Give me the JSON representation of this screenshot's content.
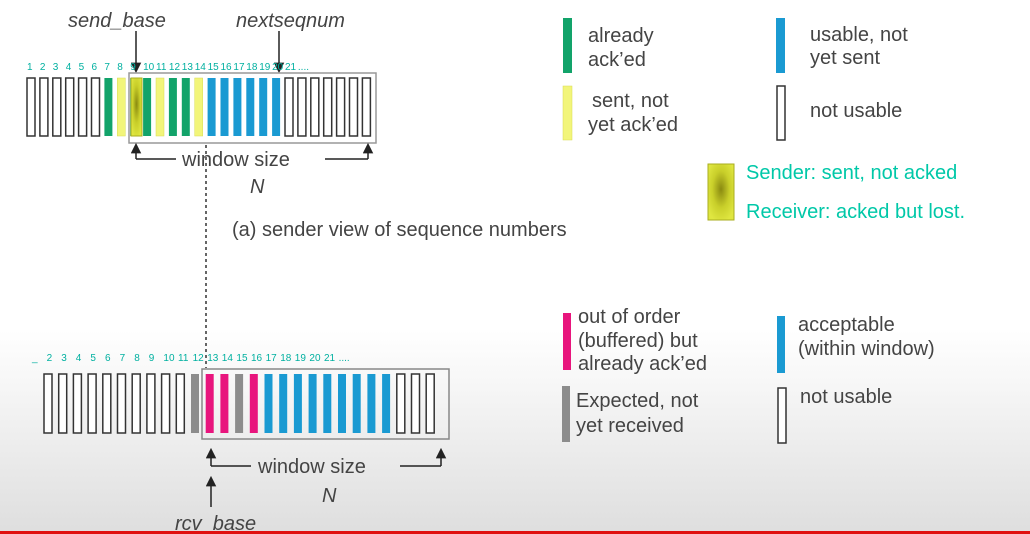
{
  "sender": {
    "send_base_label": "send_base",
    "nextseqnum_label": "nextseqnum",
    "numbers": [
      "1",
      "2",
      "3",
      "4",
      "5",
      "6",
      "7",
      "8",
      "9",
      "10",
      "11",
      "12",
      "13",
      "14",
      "15",
      "16",
      "17",
      "18",
      "19",
      "20",
      "21",
      "...."
    ],
    "slot_states": [
      "n",
      "n",
      "n",
      "n",
      "n",
      "n",
      "g",
      "y",
      "g",
      "g",
      "y",
      "g",
      "g",
      "y",
      "b",
      "b",
      "b",
      "b",
      "b",
      "b",
      "n",
      "n",
      "n",
      "n",
      "n",
      "n",
      "n"
    ],
    "window_label": "window size",
    "n_label": "N",
    "caption": "(a) sender view of sequence numbers"
  },
  "receiver": {
    "numbers": [
      "_",
      "2",
      "3",
      "4",
      "5",
      "6",
      "7",
      "8",
      "9",
      "10",
      "11",
      "12",
      "13",
      "14",
      "15",
      "16",
      "17",
      "18",
      "19",
      "20",
      "21",
      "...."
    ],
    "slot_states": [
      "n",
      "n",
      "n",
      "n",
      "n",
      "n",
      "n",
      "n",
      "n",
      "n",
      "x",
      "p",
      "p",
      "x",
      "p",
      "b",
      "b",
      "b",
      "b",
      "b",
      "b",
      "b",
      "b",
      "b",
      "n",
      "n",
      "n"
    ],
    "window_label": "window size",
    "n_label": "N",
    "rcv_base_label": "rcv_base"
  },
  "legend_top": {
    "already_line1": "already",
    "already_line2": "ack’ed",
    "usable_line1": "usable, not",
    "usable_line2": "yet sent",
    "sent_line1": "sent, not",
    "sent_line2": "yet ack’ed",
    "not_usable": "not usable",
    "note_line1": "Sender: sent, not acked",
    "note_line2": "Receiver: acked but lost."
  },
  "legend_bottom": {
    "ooo_line1": "out of order",
    "ooo_line2": "(buffered) but",
    "ooo_line3": "already ack’ed",
    "acceptable_line1": "acceptable",
    "acceptable_line2": "(within window)",
    "expected_line1": "Expected,  not",
    "expected_line2": "yet received",
    "not_usable": "not usable"
  },
  "colors": {
    "green": "#12a36a",
    "yellow": "#f2f57a",
    "blue": "#1a9ad2",
    "magenta": "#e8157d",
    "gray": "#8c8c8c",
    "highlight": "#c9cf2a",
    "cyan_text": "#00c8a8",
    "label_text": "#444444"
  }
}
